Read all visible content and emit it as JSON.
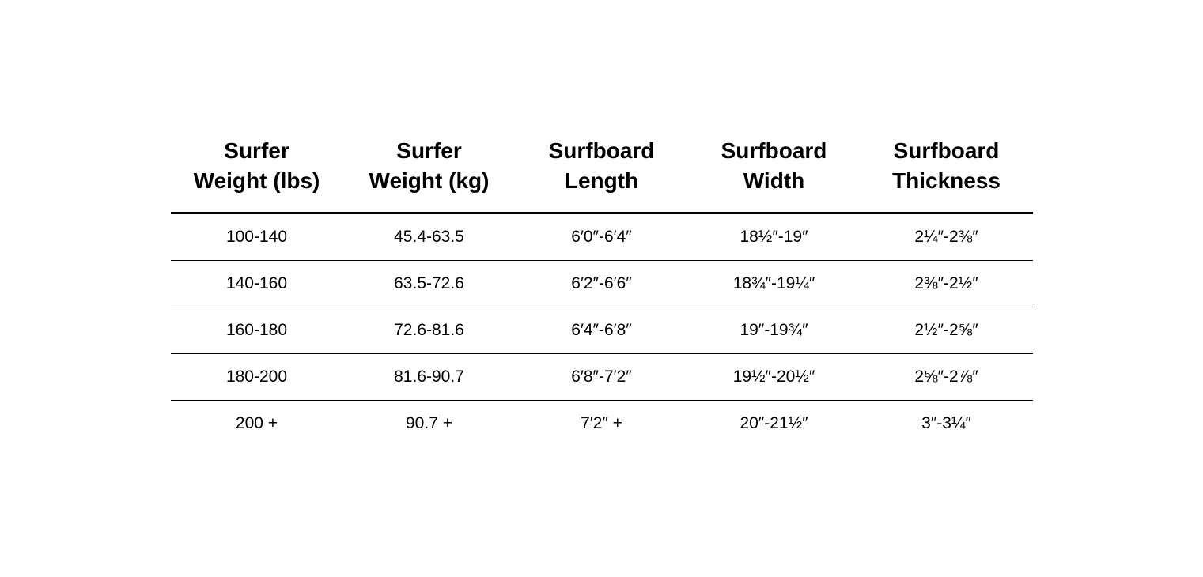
{
  "table": {
    "type": "table",
    "background_color": "#ffffff",
    "text_color": "#000000",
    "header_border_color": "#000000",
    "row_border_color": "#000000",
    "header_font_size_pt": 21,
    "header_font_weight": 700,
    "cell_font_size_pt": 16,
    "cell_font_weight": 400,
    "columns": [
      {
        "line1": "Surfer",
        "line2": "Weight (lbs)"
      },
      {
        "line1": "Surfer",
        "line2": "Weight (kg)"
      },
      {
        "line1": "Surfboard",
        "line2": "Length"
      },
      {
        "line1": "Surfboard",
        "line2": "Width"
      },
      {
        "line1": "Surfboard",
        "line2": "Thickness"
      }
    ],
    "rows": [
      [
        "100-140",
        "45.4-63.5",
        "6′0″-6′4″",
        "18½″-19″",
        "2¼″-2⅜″"
      ],
      [
        "140-160",
        "63.5-72.6",
        "6′2″-6′6″",
        "18¾″-19¼″",
        "2⅜″-2½″"
      ],
      [
        "160-180",
        "72.6-81.6",
        "6′4″-6′8″",
        "19″-19¾″",
        "2½″-2⅝″"
      ],
      [
        "180-200",
        "81.6-90.7",
        "6′8″-7′2″",
        "19½″-20½″",
        "2⅝″-2⅞″"
      ],
      [
        "200 +",
        "90.7 +",
        "7′2″ +",
        "20″-21½″",
        "3″-3¼″"
      ]
    ]
  }
}
